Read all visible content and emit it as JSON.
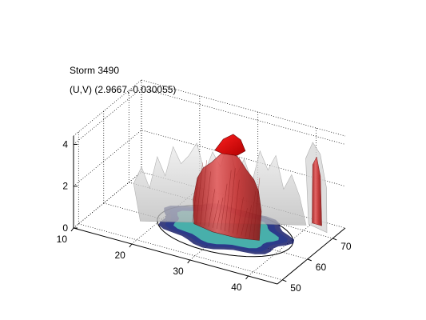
{
  "figure": {
    "title": "Storm 3490",
    "subtitle": "(U,V) (2.9667,-0.030055)"
  },
  "chart_data": {
    "type": "surface3d",
    "title": "Storm 3490",
    "subtitle": "(U,V) (2.9667,-0.030055)",
    "xlabel": "",
    "ylabel": "",
    "zlabel": "",
    "x_ticks": [
      10,
      20,
      30,
      40
    ],
    "y_ticks": [
      50,
      60,
      70
    ],
    "z_ticks": [
      0,
      2,
      4
    ],
    "xlim": [
      10,
      45
    ],
    "ylim": [
      48,
      75
    ],
    "zlim": [
      0,
      4.4
    ],
    "grid": true,
    "colors": {
      "core": "#d42a2a",
      "core_light": "#e86060",
      "shell": "#c8c8c8",
      "base_cyan": "#4ec4b0",
      "base_blue": "#2a3a8c",
      "base_dark": "#0a1060"
    },
    "surfaces": [
      {
        "name": "",
        "color": "#c8c8c8"
      },
      {
        "name": "",
        "color": "#d42a2a"
      }
    ]
  }
}
